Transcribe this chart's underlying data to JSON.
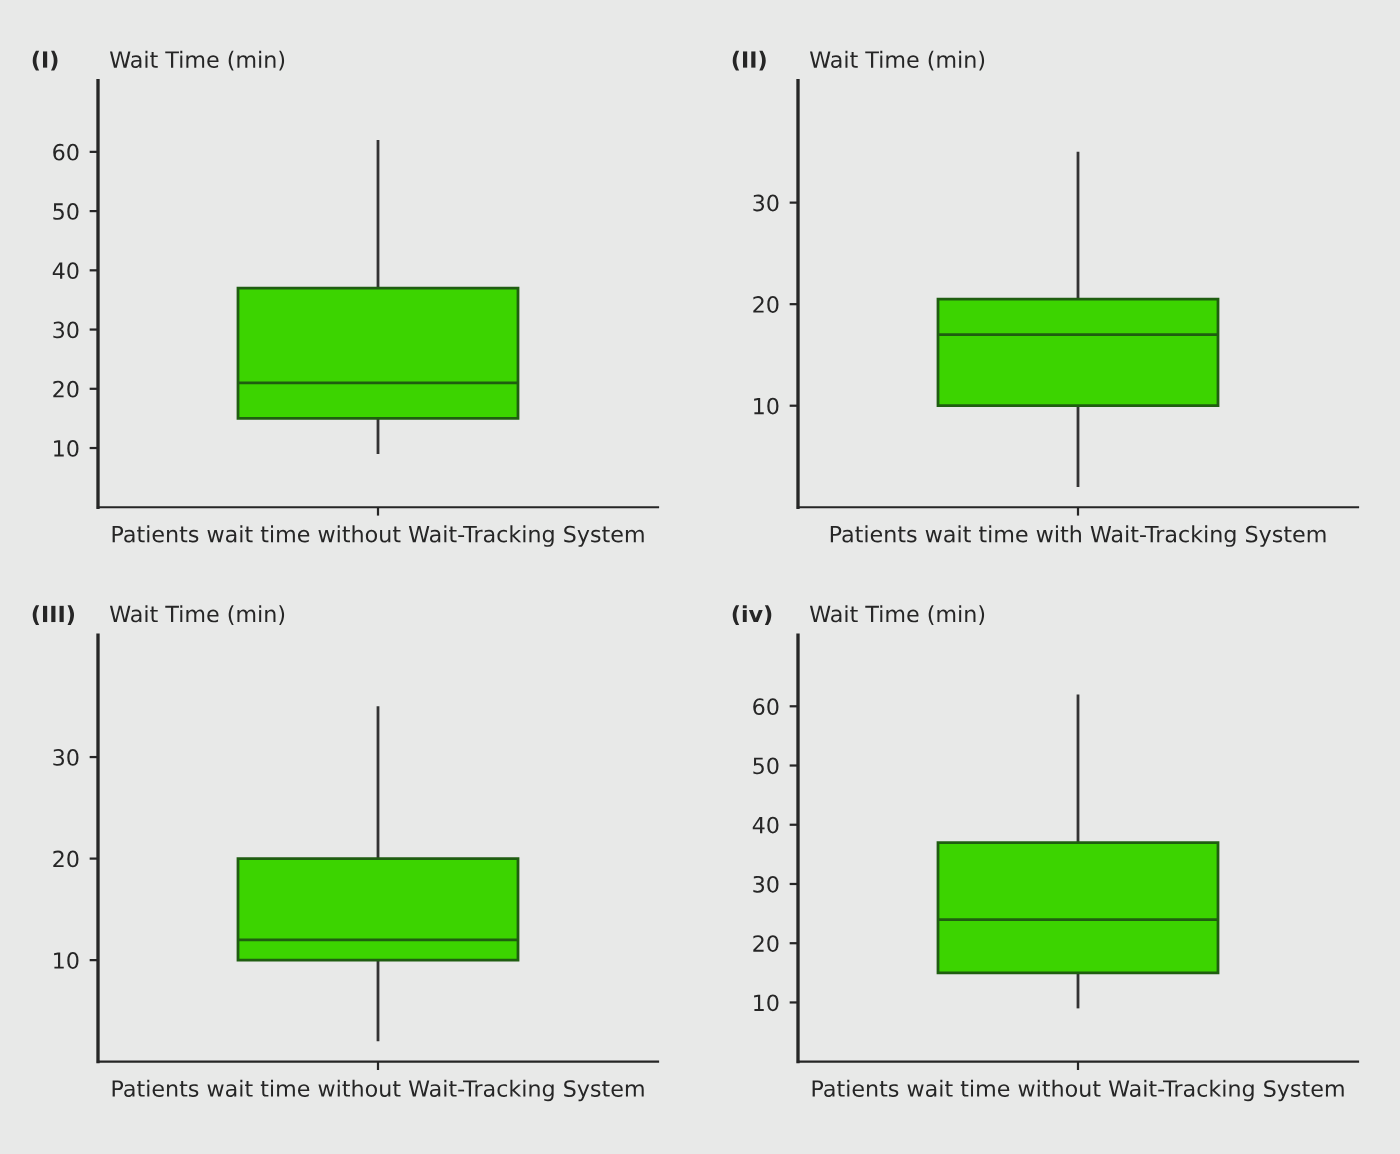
{
  "chart_data": [
    {
      "type": "box",
      "title": "(I)",
      "ylabel": "Wait Time (min)",
      "categories": [
        "Patients wait time without Wait-Tracking System"
      ],
      "color": "#3cd400",
      "ylim": [
        0,
        72
      ],
      "yticks": [
        10,
        20,
        30,
        40,
        50,
        60
      ],
      "boxes": [
        {
          "low": 9,
          "q1": 15,
          "median": 21,
          "q3": 37,
          "high": 62
        }
      ]
    },
    {
      "type": "box",
      "title": "(II)",
      "ylabel": "Wait Time (min)",
      "categories": [
        "Patients wait time with Wait-Tracking System"
      ],
      "color": "#3cd400",
      "ylim": [
        0,
        42
      ],
      "yticks": [
        10,
        20,
        30
      ],
      "boxes": [
        {
          "low": 2,
          "q1": 10,
          "median": 17,
          "q3": 20.5,
          "high": 35
        }
      ]
    },
    {
      "type": "box",
      "title": "(III)",
      "ylabel": "Wait Time (min)",
      "categories": [
        "Patients wait time without Wait-Tracking System"
      ],
      "color": "#3cd400",
      "ylim": [
        0,
        42
      ],
      "yticks": [
        10,
        20,
        30
      ],
      "boxes": [
        {
          "low": 2,
          "q1": 10,
          "median": 12,
          "q3": 20,
          "high": 35
        }
      ]
    },
    {
      "type": "box",
      "title": "(iv)",
      "ylabel": "Wait Time (min)",
      "categories": [
        "Patients wait time without Wait-Tracking System"
      ],
      "color": "#3cd400",
      "ylim": [
        0,
        72
      ],
      "yticks": [
        10,
        20,
        30,
        40,
        50,
        60
      ],
      "boxes": [
        {
          "low": 9,
          "q1": 15,
          "median": 24,
          "q3": 37,
          "high": 62
        }
      ]
    }
  ]
}
